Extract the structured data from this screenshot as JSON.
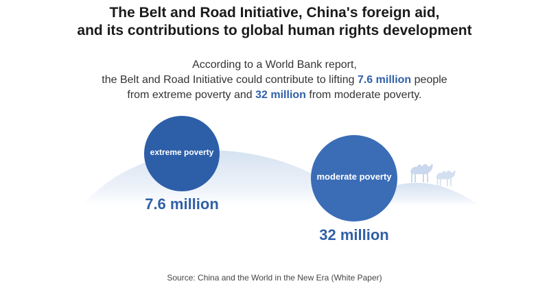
{
  "title": {
    "line1": "The Belt and Road Initiative, China's foreign aid,",
    "line2": "and its contributions to global human rights development"
  },
  "lead": {
    "line1": "According to a World Bank report,",
    "line2_prefix": "the Belt and Road Initiative could contribute to lifting ",
    "line2_highlight": "7.6 million",
    "line2_suffix": " people",
    "line3_prefix": "from extreme poverty and ",
    "line3_highlight": "32 million",
    "line3_suffix": " from moderate poverty."
  },
  "extreme": {
    "label": "extreme poverty",
    "value": "7.6 million"
  },
  "moderate": {
    "label": "moderate poverty",
    "value": "32 million"
  },
  "source": "Source: China and the World in the New Era (White Paper)",
  "colors": {
    "accent": "#2f5fa7",
    "circle_small": "#2d5ea8",
    "circle_large": "#3b6db7",
    "hill": "#dbe6f3"
  },
  "icons": [
    "camel-icon",
    "camel-icon"
  ]
}
